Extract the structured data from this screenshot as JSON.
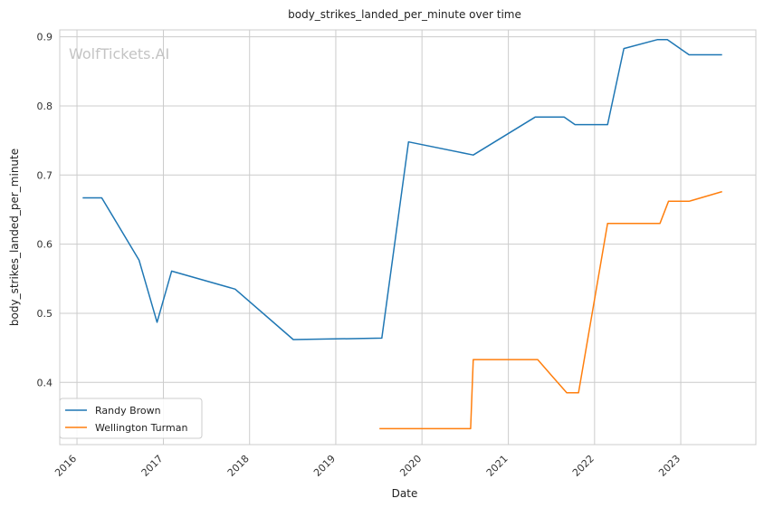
{
  "chart_data": {
    "type": "line",
    "title": "body_strikes_landed_per_minute over time",
    "xlabel": "Date",
    "ylabel": "body_strikes_landed_per_minute",
    "watermark": "WolfTickets.AI",
    "xlim": [
      "2015-10-20",
      "2023-11-15"
    ],
    "ylim": [
      0.31,
      0.91
    ],
    "x_ticks": [
      "2016",
      "2017",
      "2018",
      "2019",
      "2020",
      "2021",
      "2022",
      "2023"
    ],
    "y_ticks": [
      "0.4",
      "0.5",
      "0.6",
      "0.7",
      "0.8",
      "0.9"
    ],
    "grid": true,
    "legend_position": "lower-left",
    "series": [
      {
        "name": "Randy Brown",
        "color": "#1f77b4",
        "points": [
          [
            "2016-01-25",
            0.667
          ],
          [
            "2016-04-15",
            0.667
          ],
          [
            "2016-09-20",
            0.577
          ],
          [
            "2016-12-05",
            0.487
          ],
          [
            "2017-02-05",
            0.561
          ],
          [
            "2017-11-01",
            0.535
          ],
          [
            "2018-07-05",
            0.462
          ],
          [
            "2019-07-15",
            0.464
          ],
          [
            "2019-11-05",
            0.748
          ],
          [
            "2020-08-05",
            0.729
          ],
          [
            "2021-04-25",
            0.784
          ],
          [
            "2021-08-25",
            0.784
          ],
          [
            "2021-10-10",
            0.773
          ],
          [
            "2022-02-25",
            0.773
          ],
          [
            "2022-05-05",
            0.883
          ],
          [
            "2022-09-25",
            0.896
          ],
          [
            "2022-11-05",
            0.896
          ],
          [
            "2023-02-05",
            0.874
          ],
          [
            "2023-06-25",
            0.874
          ]
        ]
      },
      {
        "name": "Wellington Turman",
        "color": "#ff7f0e",
        "points": [
          [
            "2019-07-05",
            0.333
          ],
          [
            "2020-07-25",
            0.333
          ],
          [
            "2020-08-05",
            0.433
          ],
          [
            "2021-05-05",
            0.433
          ],
          [
            "2021-07-05",
            0.409
          ],
          [
            "2021-09-05",
            0.385
          ],
          [
            "2021-10-25",
            0.385
          ],
          [
            "2022-02-25",
            0.63
          ],
          [
            "2022-10-05",
            0.63
          ],
          [
            "2022-11-10",
            0.662
          ],
          [
            "2023-02-05",
            0.662
          ],
          [
            "2023-06-25",
            0.676
          ]
        ]
      }
    ]
  }
}
